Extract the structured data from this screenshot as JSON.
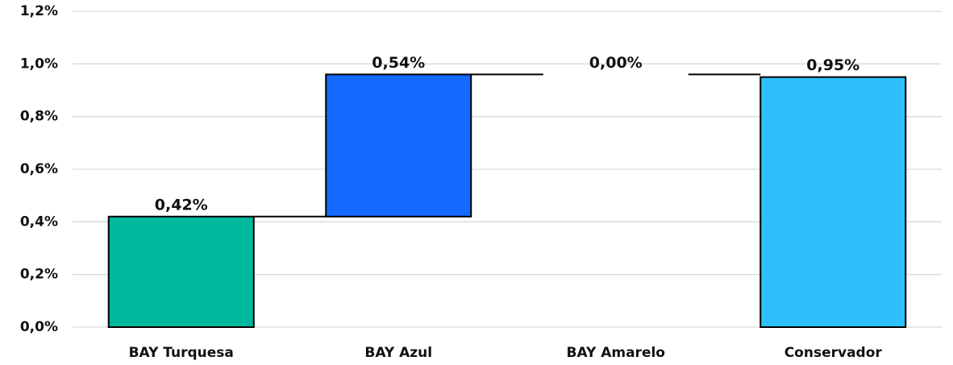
{
  "chart_data": {
    "type": "waterfall",
    "categories": [
      "BAY Turquesa",
      "BAY Azul",
      "BAY Amarelo",
      "Conservador"
    ],
    "values": [
      0.42,
      0.54,
      0.0,
      0.95
    ],
    "value_labels": [
      "0,42%",
      "0,54%",
      "0,00%",
      "0,95%"
    ],
    "measure": [
      "relative",
      "relative",
      "relative",
      "total"
    ],
    "colors": [
      "#00b89c",
      "#1469ff",
      "#ffc000",
      "#2ebfff"
    ],
    "ylim": [
      0,
      1.2
    ],
    "yticks": [
      {
        "value": 0,
        "label": "0,0%"
      },
      {
        "value": 0.2,
        "label": "0,2%"
      },
      {
        "value": 0.4,
        "label": "0,4%"
      },
      {
        "value": 0.6,
        "label": "0,6%"
      },
      {
        "value": 0.8,
        "label": "0,8%"
      },
      {
        "value": 1.0,
        "label": "1,0%"
      },
      {
        "value": 1.2,
        "label": "1,2%"
      }
    ],
    "grid": true
  }
}
